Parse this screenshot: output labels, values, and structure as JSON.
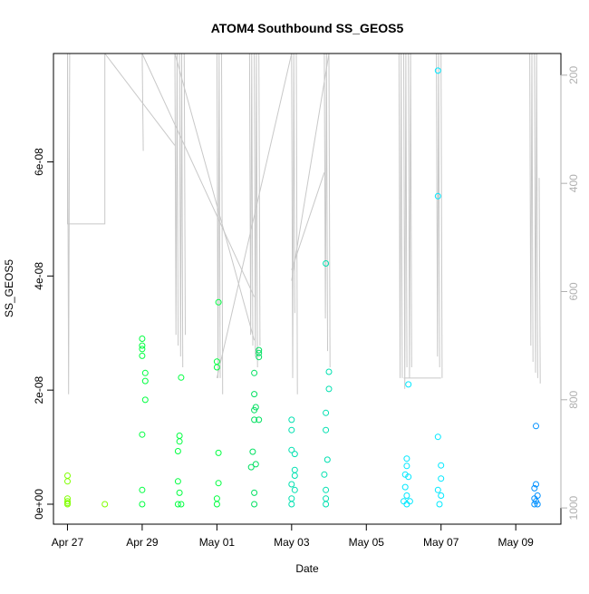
{
  "chart_data": {
    "type": "scatter",
    "title": "ATOM4 Southbound SS_GEOS5",
    "xlabel": "Date",
    "ylabel": "SS_GEOS5",
    "x_ticks": [
      "Apr 27",
      "Apr 29",
      "May 01",
      "May 03",
      "May 05",
      "May 07",
      "May 09"
    ],
    "y_ticks": [
      "0e+00",
      "2e-08",
      "4e-08",
      "6e-08"
    ],
    "y2_ticks": [
      "200",
      "400",
      "600",
      "800",
      "1000"
    ],
    "xlim": [
      "2018-04-26T15:00",
      "2018-05-10T05:00"
    ],
    "ylim": [
      -3.5e-09,
      7.9e-08
    ],
    "y2lim": [
      1030,
      160
    ],
    "y2_reversed": true,
    "grid": false,
    "colors": {
      "green_early": "#80ff00",
      "green": "#00ff40",
      "green2": "#00e060",
      "teal": "#00e0b0",
      "cyan": "#00e8ff",
      "blue": "#0090ff",
      "pressure_line": "#c8c8c8"
    },
    "points": [
      {
        "x": "2018-04-27T00:00",
        "y": 4e-09,
        "c": "green_early"
      },
      {
        "x": "2018-04-27T00:00",
        "y": 5e-09,
        "c": "green_early"
      },
      {
        "x": "2018-04-27T00:00",
        "y": 1e-09,
        "c": "green_early"
      },
      {
        "x": "2018-04-27T00:00",
        "y": 5e-10,
        "c": "green_early"
      },
      {
        "x": "2018-04-27T00:00",
        "y": 2e-10,
        "c": "green_early"
      },
      {
        "x": "2018-04-27T00:00",
        "y": 0.0,
        "c": "green_early"
      },
      {
        "x": "2018-04-28T00:00",
        "y": 0.0,
        "c": "green_early"
      },
      {
        "x": "2018-04-29T00:00",
        "y": 2.9e-08,
        "c": "green"
      },
      {
        "x": "2018-04-29T00:00",
        "y": 2.78e-08,
        "c": "green"
      },
      {
        "x": "2018-04-29T00:00",
        "y": 2.72e-08,
        "c": "green"
      },
      {
        "x": "2018-04-29T00:00",
        "y": 2.6e-08,
        "c": "green"
      },
      {
        "x": "2018-04-29T02:00",
        "y": 2.3e-08,
        "c": "green"
      },
      {
        "x": "2018-04-29T02:00",
        "y": 2.16e-08,
        "c": "green"
      },
      {
        "x": "2018-04-29T02:00",
        "y": 1.83e-08,
        "c": "green"
      },
      {
        "x": "2018-04-29T00:00",
        "y": 1.22e-08,
        "c": "green"
      },
      {
        "x": "2018-04-29T00:00",
        "y": 2.5e-09,
        "c": "green"
      },
      {
        "x": "2018-04-29T00:00",
        "y": 0.0,
        "c": "green"
      },
      {
        "x": "2018-04-29T23:00",
        "y": 9.3e-09,
        "c": "green"
      },
      {
        "x": "2018-04-30T01:00",
        "y": 2.22e-08,
        "c": "green"
      },
      {
        "x": "2018-04-30T00:00",
        "y": 1.2e-08,
        "c": "green"
      },
      {
        "x": "2018-04-30T00:00",
        "y": 1.1e-08,
        "c": "green"
      },
      {
        "x": "2018-04-29T23:00",
        "y": 4e-09,
        "c": "green"
      },
      {
        "x": "2018-04-30T00:00",
        "y": 2e-09,
        "c": "green"
      },
      {
        "x": "2018-04-29T23:00",
        "y": 0.0,
        "c": "green"
      },
      {
        "x": "2018-04-30T01:00",
        "y": 0.0,
        "c": "green"
      },
      {
        "x": "2018-05-01T01:00",
        "y": 3.54e-08,
        "c": "green"
      },
      {
        "x": "2018-05-01T00:00",
        "y": 2.5e-08,
        "c": "green"
      },
      {
        "x": "2018-05-01T00:00",
        "y": 2.4e-08,
        "c": "green"
      },
      {
        "x": "2018-05-01T01:00",
        "y": 9e-09,
        "c": "green"
      },
      {
        "x": "2018-05-01T01:00",
        "y": 3.7e-09,
        "c": "green"
      },
      {
        "x": "2018-05-01T00:00",
        "y": 1e-09,
        "c": "green"
      },
      {
        "x": "2018-05-01T00:00",
        "y": 0.0,
        "c": "green"
      },
      {
        "x": "2018-05-02T03:00",
        "y": 2.7e-08,
        "c": "green2"
      },
      {
        "x": "2018-05-02T03:00",
        "y": 2.65e-08,
        "c": "green2"
      },
      {
        "x": "2018-05-02T03:00",
        "y": 2.58e-08,
        "c": "green2"
      },
      {
        "x": "2018-05-02T00:00",
        "y": 2.3e-08,
        "c": "green2"
      },
      {
        "x": "2018-05-02T00:00",
        "y": 1.93e-08,
        "c": "green2"
      },
      {
        "x": "2018-05-02T01:00",
        "y": 1.7e-08,
        "c": "green2"
      },
      {
        "x": "2018-05-02T00:00",
        "y": 1.65e-08,
        "c": "green2"
      },
      {
        "x": "2018-05-02T00:00",
        "y": 1.48e-08,
        "c": "green2"
      },
      {
        "x": "2018-05-02T03:00",
        "y": 1.48e-08,
        "c": "green2"
      },
      {
        "x": "2018-05-01T23:00",
        "y": 9.2e-09,
        "c": "green2"
      },
      {
        "x": "2018-05-02T01:00",
        "y": 7e-09,
        "c": "green2"
      },
      {
        "x": "2018-05-01T22:00",
        "y": 6.5e-09,
        "c": "green2"
      },
      {
        "x": "2018-05-02T00:00",
        "y": 2e-09,
        "c": "green2"
      },
      {
        "x": "2018-05-02T00:00",
        "y": 0.0,
        "c": "green2"
      },
      {
        "x": "2018-05-03T00:00",
        "y": 1.48e-08,
        "c": "teal"
      },
      {
        "x": "2018-05-03T00:00",
        "y": 1.3e-08,
        "c": "teal"
      },
      {
        "x": "2018-05-03T00:00",
        "y": 9.5e-09,
        "c": "teal"
      },
      {
        "x": "2018-05-03T02:00",
        "y": 8.8e-09,
        "c": "teal"
      },
      {
        "x": "2018-05-03T02:00",
        "y": 6e-09,
        "c": "teal"
      },
      {
        "x": "2018-05-03T02:00",
        "y": 5e-09,
        "c": "teal"
      },
      {
        "x": "2018-05-03T00:00",
        "y": 3.5e-09,
        "c": "teal"
      },
      {
        "x": "2018-05-03T02:00",
        "y": 2.5e-09,
        "c": "teal"
      },
      {
        "x": "2018-05-03T00:00",
        "y": 1e-09,
        "c": "teal"
      },
      {
        "x": "2018-05-03T00:00",
        "y": 0.0,
        "c": "teal"
      },
      {
        "x": "2018-05-03T22:00",
        "y": 4.22e-08,
        "c": "teal"
      },
      {
        "x": "2018-05-04T00:00",
        "y": 2.32e-08,
        "c": "teal"
      },
      {
        "x": "2018-05-04T00:00",
        "y": 2.02e-08,
        "c": "teal"
      },
      {
        "x": "2018-05-03T22:00",
        "y": 1.6e-08,
        "c": "teal"
      },
      {
        "x": "2018-05-03T22:00",
        "y": 1.3e-08,
        "c": "teal"
      },
      {
        "x": "2018-05-03T23:00",
        "y": 7.8e-09,
        "c": "teal"
      },
      {
        "x": "2018-05-03T21:00",
        "y": 5.2e-09,
        "c": "teal"
      },
      {
        "x": "2018-05-03T22:00",
        "y": 2.5e-09,
        "c": "teal"
      },
      {
        "x": "2018-05-03T22:00",
        "y": 1e-09,
        "c": "teal"
      },
      {
        "x": "2018-05-03T22:00",
        "y": 0.0,
        "c": "teal"
      },
      {
        "x": "2018-05-06T03:00",
        "y": 2.1e-08,
        "c": "cyan"
      },
      {
        "x": "2018-05-06T02:00",
        "y": 8e-09,
        "c": "cyan"
      },
      {
        "x": "2018-05-06T02:00",
        "y": 6.7e-09,
        "c": "cyan"
      },
      {
        "x": "2018-05-06T01:00",
        "y": 5.2e-09,
        "c": "cyan"
      },
      {
        "x": "2018-05-06T03:00",
        "y": 4.8e-09,
        "c": "cyan"
      },
      {
        "x": "2018-05-06T01:00",
        "y": 3e-09,
        "c": "cyan"
      },
      {
        "x": "2018-05-06T02:00",
        "y": 1.5e-09,
        "c": "cyan"
      },
      {
        "x": "2018-05-06T00:00",
        "y": 5e-10,
        "c": "cyan"
      },
      {
        "x": "2018-05-06T04:00",
        "y": 5e-10,
        "c": "cyan"
      },
      {
        "x": "2018-05-06T02:00",
        "y": 0.0,
        "c": "cyan"
      },
      {
        "x": "2018-05-06T22:00",
        "y": 7.6e-08,
        "c": "cyan"
      },
      {
        "x": "2018-05-06T22:00",
        "y": 5.4e-08,
        "c": "cyan"
      },
      {
        "x": "2018-05-06T22:00",
        "y": 1.18e-08,
        "c": "cyan"
      },
      {
        "x": "2018-05-07T00:00",
        "y": 6.8e-09,
        "c": "cyan"
      },
      {
        "x": "2018-05-07T00:00",
        "y": 4.5e-09,
        "c": "cyan"
      },
      {
        "x": "2018-05-06T22:00",
        "y": 2.5e-09,
        "c": "cyan"
      },
      {
        "x": "2018-05-07T00:00",
        "y": 1.5e-09,
        "c": "cyan"
      },
      {
        "x": "2018-05-06T23:00",
        "y": 0.0,
        "c": "cyan"
      },
      {
        "x": "2018-05-09T13:00",
        "y": 1.37e-08,
        "c": "blue"
      },
      {
        "x": "2018-05-09T13:00",
        "y": 3.5e-09,
        "c": "blue"
      },
      {
        "x": "2018-05-09T12:00",
        "y": 2.8e-09,
        "c": "blue"
      },
      {
        "x": "2018-05-09T14:00",
        "y": 1.5e-09,
        "c": "blue"
      },
      {
        "x": "2018-05-09T12:00",
        "y": 1e-09,
        "c": "blue"
      },
      {
        "x": "2018-05-09T13:00",
        "y": 5e-10,
        "c": "blue"
      },
      {
        "x": "2018-05-09T14:00",
        "y": 0.0,
        "c": "blue"
      },
      {
        "x": "2018-05-09T12:00",
        "y": 0.0,
        "c": "blue"
      }
    ],
    "profiles": [
      {
        "x": "2018-04-27T00:00",
        "p": [
          160,
          790,
          160
        ]
      },
      {
        "x": "2018-04-29T00:00",
        "p": [
          160,
          340
        ]
      },
      {
        "x": "2018-04-29T21:00",
        "p": [
          160,
          680,
          160,
          700
        ]
      },
      {
        "x": "2018-04-30T00:00",
        "p": [
          160,
          720,
          160,
          740
        ]
      },
      {
        "x": "2018-04-30T03:00",
        "p": [
          160,
          680
        ]
      },
      {
        "x": "2018-05-01T00:00",
        "p": [
          160,
          760,
          160,
          760
        ]
      },
      {
        "x": "2018-05-01T03:00",
        "p": [
          160,
          790
        ]
      },
      {
        "x": "2018-05-01T21:00",
        "p": [
          160,
          680,
          160,
          700
        ]
      },
      {
        "x": "2018-05-02T00:00",
        "p": [
          160,
          720,
          160,
          740
        ]
      },
      {
        "x": "2018-05-02T03:00",
        "p": [
          160,
          700
        ]
      },
      {
        "x": "2018-05-03T00:00",
        "p": [
          160,
          760,
          160,
          640
        ]
      },
      {
        "x": "2018-05-03T03:00",
        "p": [
          160,
          790
        ]
      },
      {
        "x": "2018-05-03T21:00",
        "p": [
          160,
          650,
          160,
          710
        ]
      },
      {
        "x": "2018-05-04T00:00",
        "p": [
          160,
          740
        ]
      },
      {
        "x": "2018-05-05T21:00",
        "p": [
          160,
          760,
          160,
          760
        ]
      },
      {
        "x": "2018-05-06T00:00",
        "p": [
          160,
          780,
          160,
          740
        ]
      },
      {
        "x": "2018-05-06T03:00",
        "p": [
          160,
          760,
          160,
          740
        ]
      },
      {
        "x": "2018-05-06T21:00",
        "p": [
          160,
          720,
          160,
          740
        ]
      },
      {
        "x": "2018-05-07T00:00",
        "p": [
          160,
          760
        ]
      },
      {
        "x": "2018-05-09T09:00",
        "p": [
          160,
          700,
          160,
          730
        ]
      },
      {
        "x": "2018-05-09T12:00",
        "p": [
          160,
          750,
          160,
          760
        ]
      },
      {
        "x": "2018-05-09T15:00",
        "p": [
          390,
          770
        ]
      }
    ],
    "connectors": [
      [
        [
          "2018-04-27T00:00",
          160
        ],
        [
          "2018-04-27T00:00",
          475
        ],
        [
          "2018-04-28T00:00",
          475
        ],
        [
          "2018-04-28T00:00",
          160
        ]
      ],
      [
        [
          "2018-04-28T00:00",
          160
        ],
        [
          "2018-04-29T21:00",
          330
        ]
      ],
      [
        [
          "2018-04-29T00:00",
          160
        ],
        [
          "2018-05-02T00:00",
          610
        ]
      ],
      [
        [
          "2018-04-29T21:00",
          160
        ],
        [
          "2018-05-02T00:00",
          690
        ]
      ],
      [
        [
          "2018-05-01T00:00",
          760
        ],
        [
          "2018-05-03T00:00",
          160
        ]
      ],
      [
        [
          "2018-05-03T00:00",
          560
        ],
        [
          "2018-05-03T21:00",
          380
        ]
      ],
      [
        [
          "2018-05-03T00:00",
          580
        ],
        [
          "2018-05-04T00:00",
          160
        ]
      ],
      [
        [
          "2018-05-06T00:00",
          760
        ],
        [
          "2018-05-07T00:00",
          760
        ]
      ]
    ]
  }
}
